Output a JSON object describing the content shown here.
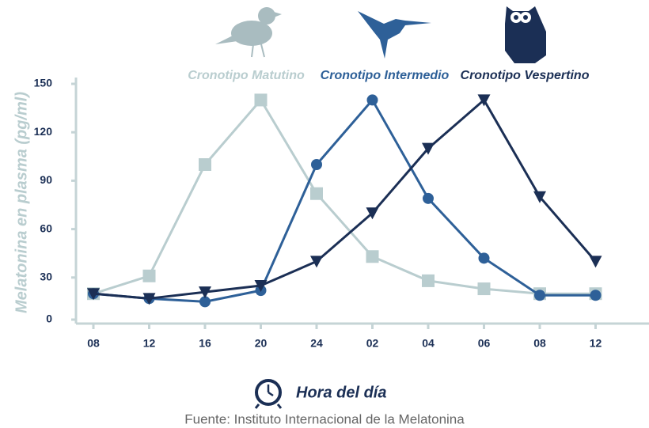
{
  "chart_data": {
    "type": "line",
    "y_label": "Melatonina en plasma (pg/ml)",
    "x_label": "Hora del día",
    "source": "Fuente: Instituto Internacional de la Melatonina",
    "categories": [
      "08",
      "12",
      "16",
      "20",
      "24",
      "02",
      "04",
      "06",
      "08",
      "12"
    ],
    "ylim": [
      0,
      150
    ],
    "yticks": [
      0,
      30,
      60,
      90,
      120,
      150
    ],
    "series": [
      {
        "name": "Cronotipo Matutino",
        "color": "#b9cdcf",
        "marker": "square",
        "values": [
          20,
          31,
          100,
          140,
          82,
          43,
          28,
          23,
          20,
          20
        ]
      },
      {
        "name": "Cronotipo Intermedio",
        "color": "#2e6098",
        "marker": "circle",
        "values": [
          20,
          17,
          15,
          22,
          100,
          140,
          79,
          42,
          19,
          19
        ]
      },
      {
        "name": "Cronotipo Vespertino",
        "color": "#1b2f55",
        "marker": "triangle",
        "values": [
          20,
          17,
          21,
          25,
          40,
          70,
          110,
          140,
          80,
          40
        ]
      }
    ]
  }
}
